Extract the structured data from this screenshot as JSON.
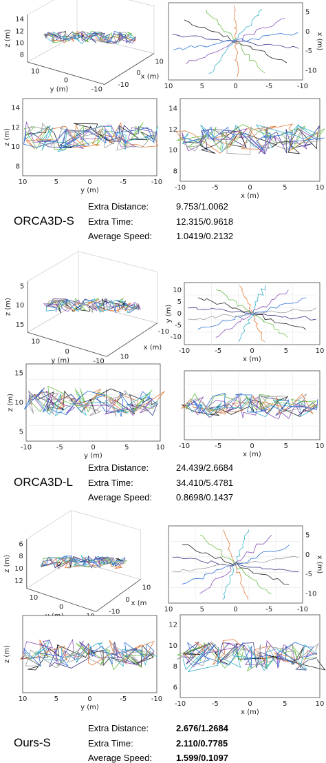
{
  "chart_data": [
    {
      "type": "line",
      "group": "ORCA3D-S",
      "view": "3d",
      "zlabel": "z (m)",
      "xlabel": "x (m)",
      "ylabel": "y (m)",
      "z_ticks": [
        "8",
        "10",
        "12",
        "14"
      ],
      "y_ticks": [
        "10",
        "0",
        "-10"
      ],
      "x_ticks": [
        "10",
        "0",
        "-10"
      ]
    },
    {
      "type": "line",
      "group": "ORCA3D-S",
      "view": "top",
      "ylabel": "x (m)",
      "x_ticks": [
        "10",
        "5",
        "0",
        "-5",
        "-10"
      ],
      "y_ticks": [
        "5",
        "0",
        "-5",
        "-10"
      ]
    },
    {
      "type": "line",
      "group": "ORCA3D-S",
      "view": "side-y",
      "xlabel": "y (m)",
      "ylabel": "z (m)",
      "x_ticks": [
        "10",
        "5",
        "0",
        "-5",
        "-10"
      ],
      "y_ticks": [
        "14",
        "12",
        "10",
        "8"
      ]
    },
    {
      "type": "line",
      "group": "ORCA3D-S",
      "view": "side-x",
      "xlabel": "x (m)",
      "x_ticks": [
        "-10",
        "-5",
        "0",
        "5",
        "10"
      ],
      "y_ticks": [
        "14",
        "12",
        "10",
        "8"
      ]
    },
    {
      "type": "line",
      "group": "ORCA3D-L",
      "view": "3d",
      "zlabel": "z (m)",
      "xlabel": "x (m)",
      "ylabel": "y (m)",
      "z_ticks": [
        "15",
        "10",
        "5"
      ],
      "y_ticks": [
        "10",
        "0",
        "-10"
      ],
      "x_ticks": [
        "-10",
        "10"
      ]
    },
    {
      "type": "line",
      "group": "ORCA3D-L",
      "view": "top",
      "xlabel": "x (m)",
      "ylabel": "y (m)",
      "x_ticks": [
        "-10",
        "-5",
        "0",
        "5",
        "10"
      ],
      "y_ticks": [
        "10",
        "5",
        "0",
        "-5",
        "-10"
      ]
    },
    {
      "type": "line",
      "group": "ORCA3D-L",
      "view": "side-y",
      "xlabel": "y (m)",
      "ylabel": "z (m)",
      "x_ticks": [
        "-10",
        "-5",
        "0",
        "5",
        "10"
      ],
      "y_ticks": [
        "15",
        "10",
        "5"
      ]
    },
    {
      "type": "line",
      "group": "ORCA3D-L",
      "view": "side-x",
      "xlabel": "x (m)",
      "x_ticks": [
        "-10",
        "-5",
        "0",
        "5",
        "10"
      ]
    },
    {
      "type": "line",
      "group": "Ours-S",
      "view": "3d",
      "zlabel": "z (m)",
      "xlabel": "x (m",
      "ylabel": "y (m)",
      "z_ticks": [
        "12",
        "10",
        "8",
        "6"
      ],
      "y_ticks": [
        "10",
        "0",
        "-10"
      ],
      "x_ticks": [
        "10",
        "0",
        "-10"
      ]
    },
    {
      "type": "line",
      "group": "Ours-S",
      "view": "top",
      "ylabel": "x (m)",
      "x_ticks": [
        "10",
        "5",
        "0",
        "-5",
        "-10"
      ],
      "y_ticks": [
        "5",
        "0",
        "-5",
        "-10"
      ]
    },
    {
      "type": "line",
      "group": "Ours-S",
      "view": "side-y",
      "xlabel": "y (m)",
      "ylabel": "z (m)",
      "x_ticks": [
        "10",
        "5",
        "0",
        "-5",
        "-10"
      ]
    },
    {
      "type": "line",
      "group": "Ours-S",
      "view": "side-x",
      "xlabel": "x (m)",
      "x_ticks": [
        "-10",
        "-5",
        "0",
        "5",
        "10"
      ],
      "y_ticks": [
        "12",
        "10",
        "8",
        "6"
      ]
    }
  ],
  "metrics": [
    {
      "method": "ORCA3D-S",
      "rows": [
        {
          "label": "Extra Distance:",
          "value": "9.753/1.0062"
        },
        {
          "label": "Extra Time:",
          "value": "12.315/0.9618"
        },
        {
          "label": "Average Speed:",
          "value": "1.0419/0.2132"
        }
      ]
    },
    {
      "method": "ORCA3D-L",
      "rows": [
        {
          "label": "Extra Distance:",
          "value": "24.439/2.6684"
        },
        {
          "label": "Extra Time:",
          "value": "34.410/5.4781"
        },
        {
          "label": "Average Speed:",
          "value": "0.8698/0.1437"
        }
      ]
    },
    {
      "method": "Ours-S",
      "rows": [
        {
          "label": "Extra Distance:",
          "value": "2.676/1.2684"
        },
        {
          "label": "Extra Time:",
          "value": "2.110/0.7785"
        },
        {
          "label": "Average Speed:",
          "value": "1.599/0.1097"
        }
      ]
    }
  ],
  "colors": {
    "traj": [
      "#3a3a8c",
      "#1f1f1f",
      "#6cbf4a",
      "#e07a3a",
      "#35b0c8",
      "#8a4fb8",
      "#2b6fd6",
      "#9a9a9a"
    ]
  }
}
